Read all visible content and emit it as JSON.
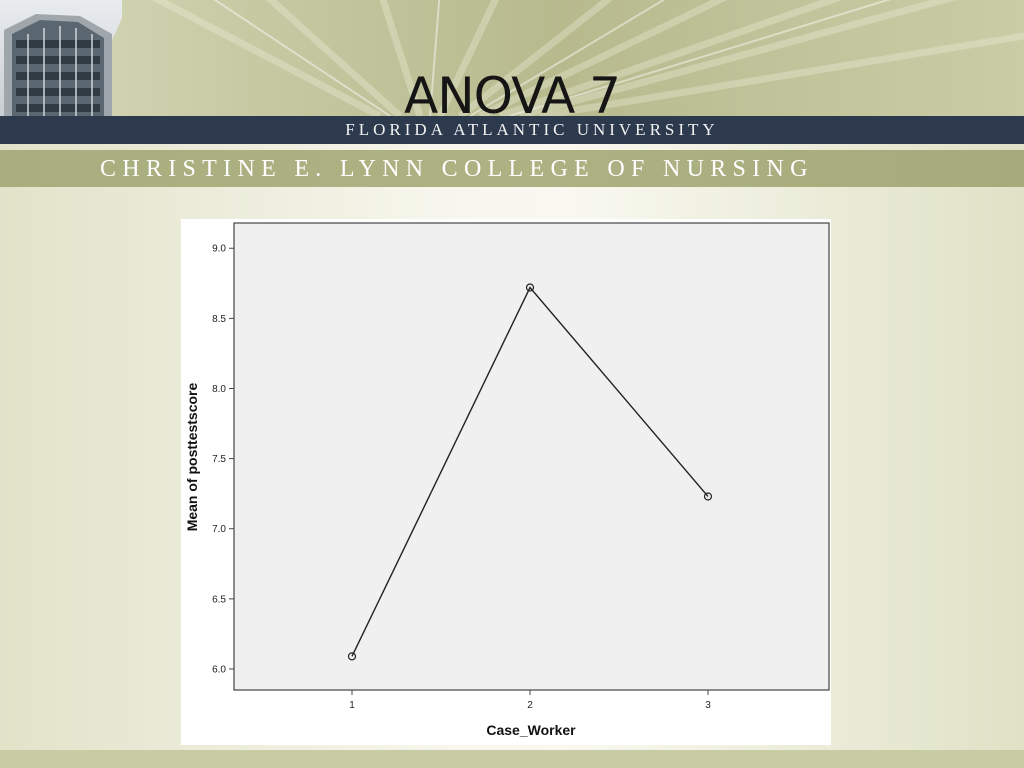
{
  "slide": {
    "title": "ANOVA 7",
    "university": "FLORIDA ATLANTIC UNIVERSITY",
    "college": "CHRISTINE E. LYNN COLLEGE OF NURSING"
  },
  "colors": {
    "header_bar": "#2d3a4e",
    "college_bar": "#aeb283",
    "plot_background": "#f0f0f0",
    "series_line": "#222222"
  },
  "chart_data": {
    "type": "line",
    "title": "",
    "xlabel": "Case_Worker",
    "ylabel": "Mean of posttestscore",
    "categories": [
      "1",
      "2",
      "3"
    ],
    "series": [
      {
        "values": [
          6.09,
          8.72,
          7.23
        ],
        "marker": "circle"
      }
    ],
    "ylim": [
      5.85,
      9.18
    ],
    "yticks": [
      "6.0",
      "6.5",
      "7.0",
      "7.5",
      "8.0",
      "8.5",
      "9.0"
    ],
    "grid": false,
    "legend": "none"
  }
}
